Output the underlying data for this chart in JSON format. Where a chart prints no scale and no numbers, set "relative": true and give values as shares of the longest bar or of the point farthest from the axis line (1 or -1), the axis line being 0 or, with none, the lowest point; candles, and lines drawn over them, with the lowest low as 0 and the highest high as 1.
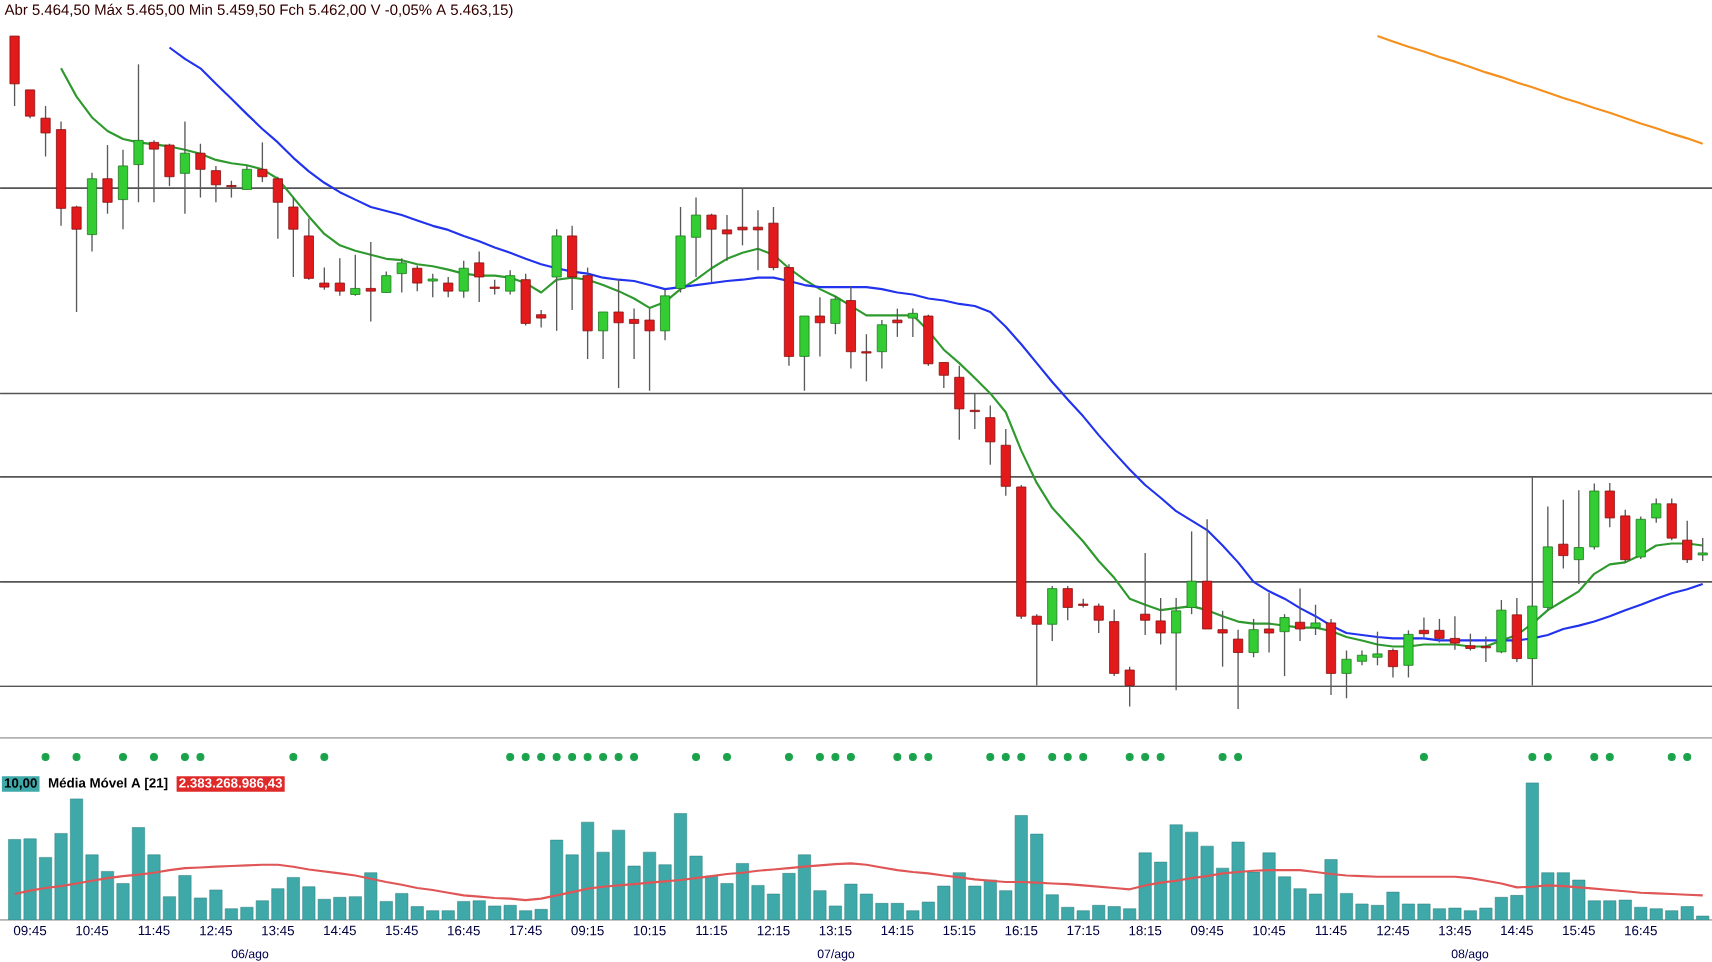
{
  "chart_data": [
    {
      "type": "candlestick",
      "relative": true,
      "tick_labels": false,
      "annotations": [
        "Abr 5.464,50 Máx 5.465,00 Min 5.459,50 Fch 5.462,00 V -0,05% A 5.463,15)"
      ],
      "categories": [
        null,
        null,
        null,
        null,
        null,
        null,
        null,
        null,
        null,
        null,
        null,
        null,
        null,
        null,
        null,
        null,
        null,
        null,
        null,
        null,
        null,
        null,
        null,
        null,
        null,
        null,
        null,
        null,
        null,
        null,
        null,
        null,
        null,
        null,
        null,
        null,
        null,
        null,
        null,
        null,
        null,
        null,
        null,
        null,
        null,
        null,
        null,
        null,
        null,
        null,
        null,
        null,
        null,
        null,
        null,
        null,
        null,
        null,
        null,
        null,
        null,
        null,
        null,
        null,
        null,
        null,
        null,
        null,
        null,
        null,
        null,
        null,
        null,
        null,
        null,
        null,
        null,
        null,
        null,
        null,
        null,
        null,
        null,
        null,
        null,
        null,
        null,
        null,
        null,
        null,
        null,
        null,
        null,
        null,
        null,
        null,
        null,
        null,
        null,
        null,
        null,
        null,
        null,
        null,
        null,
        null,
        null,
        null,
        null,
        null
      ],
      "ohlc": [
        [
          1.0,
          1.0,
          0.896,
          0.929
        ],
        [
          0.92,
          0.92,
          0.878,
          0.881
        ],
        [
          0.878,
          0.896,
          0.821,
          0.856
        ],
        [
          0.861,
          0.873,
          0.718,
          0.744
        ],
        [
          0.746,
          0.748,
          0.59,
          0.713
        ],
        [
          0.705,
          0.797,
          0.68,
          0.788
        ],
        [
          0.788,
          0.838,
          0.736,
          0.753
        ],
        [
          0.757,
          0.831,
          0.713,
          0.807
        ],
        [
          0.809,
          0.958,
          0.753,
          0.845
        ],
        [
          0.842,
          0.845,
          0.753,
          0.832
        ],
        [
          0.838,
          0.84,
          0.777,
          0.791
        ],
        [
          0.796,
          0.873,
          0.736,
          0.826
        ],
        [
          0.826,
          0.84,
          0.76,
          0.802
        ],
        [
          0.8,
          0.807,
          0.753,
          0.779
        ],
        [
          0.778,
          0.785,
          0.76,
          0.776
        ],
        [
          0.772,
          0.807,
          0.772,
          0.802
        ],
        [
          0.802,
          0.842,
          0.783,
          0.791
        ],
        [
          0.788,
          0.791,
          0.699,
          0.753
        ],
        [
          0.746,
          0.76,
          0.642,
          0.713
        ],
        [
          0.703,
          0.729,
          0.638,
          0.64
        ],
        [
          0.633,
          0.656,
          0.623,
          0.627
        ],
        [
          0.633,
          0.67,
          0.614,
          0.621
        ],
        [
          0.616,
          0.675,
          0.614,
          0.625
        ],
        [
          0.625,
          0.694,
          0.576,
          0.621
        ],
        [
          0.619,
          0.65,
          0.619,
          0.644
        ],
        [
          0.647,
          0.67,
          0.619,
          0.663
        ],
        [
          0.655,
          0.659,
          0.621,
          0.633
        ],
        [
          0.636,
          0.647,
          0.612,
          0.639
        ],
        [
          0.633,
          0.642,
          0.612,
          0.621
        ],
        [
          0.621,
          0.666,
          0.611,
          0.655
        ],
        [
          0.663,
          0.68,
          0.605,
          0.642
        ],
        [
          0.627,
          0.638,
          0.616,
          0.625
        ],
        [
          0.621,
          0.652,
          0.616,
          0.644
        ],
        [
          0.638,
          0.647,
          0.57,
          0.573
        ],
        [
          0.586,
          0.593,
          0.567,
          0.581
        ],
        [
          0.642,
          0.713,
          0.562,
          0.703
        ],
        [
          0.703,
          0.718,
          0.593,
          0.642
        ],
        [
          0.644,
          0.656,
          0.52,
          0.562
        ],
        [
          0.562,
          0.59,
          0.52,
          0.59
        ],
        [
          0.59,
          0.638,
          0.477,
          0.574
        ],
        [
          0.579,
          0.595,
          0.52,
          0.573
        ],
        [
          0.578,
          0.595,
          0.473,
          0.562
        ],
        [
          0.562,
          0.623,
          0.548,
          0.614
        ],
        [
          0.625,
          0.746,
          0.619,
          0.703
        ],
        [
          0.701,
          0.76,
          0.642,
          0.734
        ],
        [
          0.734,
          0.736,
          0.633,
          0.713
        ],
        [
          0.712,
          0.734,
          0.666,
          0.706
        ],
        [
          0.716,
          0.774,
          0.689,
          0.712
        ],
        [
          0.716,
          0.741,
          0.652,
          0.712
        ],
        [
          0.722,
          0.746,
          0.652,
          0.656
        ],
        [
          0.656,
          0.661,
          0.51,
          0.524
        ],
        [
          0.524,
          0.584,
          0.473,
          0.584
        ],
        [
          0.584,
          0.612,
          0.524,
          0.574
        ],
        [
          0.573,
          0.614,
          0.557,
          0.609
        ],
        [
          0.607,
          0.628,
          0.506,
          0.531
        ],
        [
          0.531,
          0.557,
          0.487,
          0.529
        ],
        [
          0.531,
          0.578,
          0.506,
          0.571
        ],
        [
          0.578,
          0.595,
          0.553,
          0.574
        ],
        [
          0.581,
          0.595,
          0.553,
          0.588
        ],
        [
          0.584,
          0.586,
          0.51,
          0.513
        ],
        [
          0.515,
          0.515,
          0.477,
          0.496
        ],
        [
          0.493,
          0.51,
          0.4,
          0.446
        ],
        [
          0.444,
          0.468,
          0.416,
          0.442
        ],
        [
          0.433,
          0.451,
          0.363,
          0.397
        ],
        [
          0.392,
          0.416,
          0.317,
          0.331
        ],
        [
          0.33,
          0.333,
          0.134,
          0.138
        ],
        [
          0.138,
          0.141,
          0.035,
          0.126
        ],
        [
          0.126,
          0.183,
          0.101,
          0.179
        ],
        [
          0.179,
          0.183,
          0.132,
          0.151
        ],
        [
          0.156,
          0.164,
          0.151,
          0.154
        ],
        [
          0.153,
          0.157,
          0.113,
          0.132
        ],
        [
          0.13,
          0.148,
          0.049,
          0.053
        ],
        [
          0.058,
          0.063,
          0.004,
          0.035
        ],
        [
          0.141,
          0.232,
          0.11,
          0.132
        ],
        [
          0.131,
          0.165,
          0.096,
          0.113
        ],
        [
          0.113,
          0.165,
          0.028,
          0.146
        ],
        [
          0.151,
          0.264,
          0.141,
          0.19
        ],
        [
          0.19,
          0.282,
          0.119,
          0.119
        ],
        [
          0.118,
          0.146,
          0.063,
          0.113
        ],
        [
          0.104,
          0.118,
          0.0,
          0.084
        ],
        [
          0.084,
          0.134,
          0.077,
          0.118
        ],
        [
          0.119,
          0.173,
          0.084,
          0.113
        ],
        [
          0.115,
          0.141,
          0.049,
          0.136
        ],
        [
          0.129,
          0.179,
          0.101,
          0.119
        ],
        [
          0.121,
          0.155,
          0.11,
          0.128
        ],
        [
          0.128,
          0.134,
          0.021,
          0.053
        ],
        [
          0.053,
          0.087,
          0.016,
          0.074
        ],
        [
          0.071,
          0.087,
          0.065,
          0.08
        ],
        [
          0.077,
          0.115,
          0.065,
          0.082
        ],
        [
          0.087,
          0.09,
          0.047,
          0.063
        ],
        [
          0.065,
          0.117,
          0.047,
          0.111
        ],
        [
          0.117,
          0.136,
          0.107,
          0.112
        ],
        [
          0.117,
          0.134,
          0.099,
          0.105
        ],
        [
          0.105,
          0.138,
          0.088,
          0.098
        ],
        [
          0.094,
          0.112,
          0.087,
          0.09
        ],
        [
          0.093,
          0.108,
          0.07,
          0.091
        ],
        [
          0.085,
          0.162,
          0.083,
          0.147
        ],
        [
          0.14,
          0.165,
          0.07,
          0.075
        ],
        [
          0.075,
          0.345,
          0.035,
          0.153
        ],
        [
          0.151,
          0.301,
          0.147,
          0.241
        ],
        [
          0.245,
          0.311,
          0.209,
          0.228
        ],
        [
          0.222,
          0.325,
          0.186,
          0.24
        ],
        [
          0.241,
          0.335,
          0.237,
          0.324
        ],
        [
          0.324,
          0.336,
          0.27,
          0.284
        ],
        [
          0.287,
          0.296,
          0.218,
          0.222
        ],
        [
          0.226,
          0.286,
          0.223,
          0.282
        ],
        [
          0.284,
          0.313,
          0.277,
          0.305
        ],
        [
          0.305,
          0.313,
          0.251,
          0.254
        ],
        [
          0.251,
          0.28,
          0.217,
          0.222
        ],
        [
          0.229,
          0.254,
          0.22,
          0.232
        ]
      ],
      "series": [
        {
          "type": "line",
          "color": "#2e9a2e",
          "values": [
            null,
            null,
            null,
            0.952,
            0.91,
            0.879,
            0.859,
            0.847,
            0.842,
            0.839,
            0.836,
            0.831,
            0.825,
            0.816,
            0.811,
            0.808,
            0.802,
            0.788,
            0.76,
            0.732,
            0.706,
            0.689,
            0.681,
            0.675,
            0.669,
            0.667,
            0.661,
            0.658,
            0.653,
            0.647,
            0.644,
            0.644,
            0.641,
            0.633,
            0.619,
            0.638,
            0.641,
            0.638,
            0.63,
            0.621,
            0.61,
            0.596,
            0.605,
            0.624,
            0.638,
            0.655,
            0.669,
            0.678,
            0.684,
            0.675,
            0.655,
            0.638,
            0.624,
            0.613,
            0.599,
            0.585,
            0.585,
            0.585,
            0.585,
            0.562,
            0.534,
            0.514,
            0.492,
            0.469,
            0.441,
            0.384,
            0.336,
            0.299,
            0.274,
            0.249,
            0.22,
            0.195,
            0.164,
            0.155,
            0.147,
            0.15,
            0.153,
            0.147,
            0.138,
            0.13,
            0.127,
            0.127,
            0.124,
            0.121,
            0.121,
            0.116,
            0.107,
            0.102,
            0.096,
            0.093,
            0.093,
            0.096,
            0.096,
            0.096,
            0.093,
            0.093,
            0.102,
            0.11,
            0.127,
            0.147,
            0.161,
            0.175,
            0.201,
            0.215,
            0.218,
            0.229,
            0.243,
            0.246,
            0.246,
            0.243
          ]
        },
        {
          "type": "line",
          "color": "#2233ee",
          "values": [
            null,
            null,
            null,
            null,
            null,
            null,
            null,
            null,
            null,
            null,
            0.983,
            0.966,
            0.952,
            0.929,
            0.907,
            0.884,
            0.862,
            0.842,
            0.819,
            0.799,
            0.782,
            0.768,
            0.757,
            0.746,
            0.74,
            0.734,
            0.726,
            0.718,
            0.712,
            0.703,
            0.695,
            0.686,
            0.678,
            0.669,
            0.661,
            0.655,
            0.65,
            0.647,
            0.641,
            0.638,
            0.636,
            0.63,
            0.624,
            0.627,
            0.63,
            0.633,
            0.636,
            0.638,
            0.641,
            0.641,
            0.636,
            0.63,
            0.627,
            0.627,
            0.627,
            0.627,
            0.624,
            0.619,
            0.616,
            0.61,
            0.607,
            0.602,
            0.599,
            0.59,
            0.568,
            0.542,
            0.514,
            0.486,
            0.46,
            0.435,
            0.407,
            0.381,
            0.356,
            0.333,
            0.314,
            0.294,
            0.28,
            0.266,
            0.243,
            0.218,
            0.189,
            0.175,
            0.164,
            0.15,
            0.138,
            0.124,
            0.113,
            0.11,
            0.107,
            0.105,
            0.105,
            0.105,
            0.102,
            0.102,
            0.102,
            0.102,
            0.102,
            0.102,
            0.105,
            0.11,
            0.119,
            0.124,
            0.13,
            0.138,
            0.147,
            0.155,
            0.164,
            0.172,
            0.178,
            0.186
          ]
        },
        {
          "type": "line",
          "color": "#f5901e",
          "values": [
            null,
            null,
            null,
            null,
            null,
            null,
            null,
            null,
            null,
            null,
            null,
            null,
            null,
            null,
            null,
            null,
            null,
            null,
            null,
            null,
            null,
            null,
            null,
            null,
            null,
            null,
            null,
            null,
            null,
            null,
            null,
            null,
            null,
            null,
            null,
            null,
            null,
            null,
            null,
            null,
            null,
            null,
            null,
            null,
            null,
            null,
            null,
            null,
            null,
            null,
            null,
            null,
            null,
            null,
            null,
            null,
            null,
            null,
            null,
            null,
            null,
            null,
            null,
            null,
            null,
            null,
            null,
            null,
            null,
            null,
            null,
            null,
            null,
            null,
            null,
            null,
            null,
            null,
            null,
            null,
            null,
            null,
            null,
            null,
            null,
            null,
            null,
            null,
            1.0,
            0.992,
            0.984,
            0.977,
            0.969,
            0.962,
            0.954,
            0.946,
            0.939,
            0.931,
            0.924,
            0.916,
            0.908,
            0.901,
            0.893,
            0.886,
            0.878,
            0.87,
            0.863,
            0.855,
            0.848,
            0.84
          ]
        }
      ],
      "ref_lines": [
        {
          "axis": "y",
          "value": 0.774,
          "color": "#555555"
        },
        {
          "axis": "y",
          "value": 0.469,
          "color": "#555555"
        },
        {
          "axis": "y",
          "value": 0.345,
          "color": "#555555"
        },
        {
          "axis": "y",
          "value": 0.189,
          "color": "#555555"
        },
        {
          "axis": "y",
          "value": 0.034,
          "color": "#555555"
        }
      ]
    },
    {
      "type": "bar",
      "relative": true,
      "tick_labels": "x",
      "annotations": [
        "10,00",
        "Média Móvel A [21]",
        "2.383.268.986,43",
        "06/ago",
        "07/ago",
        "08/ago"
      ],
      "categories": [
        null,
        "09:45",
        null,
        null,
        null,
        "10:45",
        null,
        null,
        null,
        "11:45",
        null,
        null,
        null,
        "12:45",
        null,
        null,
        null,
        "13:45",
        null,
        null,
        null,
        "14:45",
        null,
        null,
        null,
        "15:45",
        null,
        null,
        null,
        "16:45",
        null,
        null,
        null,
        "17:45",
        null,
        null,
        null,
        "09:15",
        null,
        null,
        null,
        "10:15",
        null,
        null,
        null,
        "11:15",
        null,
        null,
        null,
        "12:15",
        null,
        null,
        null,
        "13:15",
        null,
        null,
        null,
        "14:15",
        null,
        null,
        null,
        "15:15",
        null,
        null,
        null,
        "16:15",
        null,
        null,
        null,
        "17:15",
        null,
        null,
        null,
        "18:15",
        null,
        null,
        null,
        "09:45",
        null,
        null,
        null,
        "10:45",
        null,
        null,
        null,
        "11:45",
        null,
        null,
        null,
        "12:45",
        null,
        null,
        null,
        "13:45",
        null,
        null,
        null,
        "14:45",
        null,
        null,
        null,
        "15:45",
        null,
        null,
        null,
        "16:45",
        null,
        null,
        null,
        null
      ],
      "series": [
        {
          "type": "bar",
          "color": "#3fa9a9",
          "values": [
            0.494,
            0.498,
            0.384,
            0.531,
            0.743,
            0.4,
            0.298,
            0.224,
            0.567,
            0.4,
            0.143,
            0.273,
            0.135,
            0.184,
            0.069,
            0.078,
            0.118,
            0.192,
            0.261,
            0.204,
            0.127,
            0.139,
            0.143,
            0.29,
            0.114,
            0.163,
            0.082,
            0.057,
            0.057,
            0.114,
            0.118,
            0.086,
            0.09,
            0.057,
            0.065,
            0.49,
            0.4,
            0.6,
            0.416,
            0.551,
            0.331,
            0.416,
            0.339,
            0.653,
            0.392,
            0.269,
            0.224,
            0.347,
            0.212,
            0.159,
            0.286,
            0.4,
            0.18,
            0.086,
            0.22,
            0.159,
            0.102,
            0.102,
            0.057,
            0.11,
            0.208,
            0.29,
            0.208,
            0.245,
            0.18,
            0.641,
            0.527,
            0.155,
            0.078,
            0.057,
            0.09,
            0.082,
            0.069,
            0.412,
            0.355,
            0.584,
            0.539,
            0.453,
            0.318,
            0.478,
            0.294,
            0.412,
            0.265,
            0.192,
            0.159,
            0.371,
            0.163,
            0.098,
            0.09,
            0.171,
            0.098,
            0.098,
            0.069,
            0.073,
            0.057,
            0.073,
            0.139,
            0.151,
            0.841,
            0.29,
            0.29,
            0.245,
            0.118,
            0.118,
            0.122,
            0.078,
            0.069,
            0.057,
            0.082,
            0.024
          ]
        },
        {
          "type": "line",
          "color": "#e05555",
          "values": [
            0.159,
            0.18,
            0.196,
            0.208,
            0.224,
            0.241,
            0.257,
            0.269,
            0.278,
            0.29,
            0.306,
            0.318,
            0.322,
            0.327,
            0.331,
            0.335,
            0.339,
            0.339,
            0.327,
            0.31,
            0.298,
            0.286,
            0.273,
            0.253,
            0.233,
            0.216,
            0.196,
            0.184,
            0.167,
            0.151,
            0.143,
            0.135,
            0.131,
            0.122,
            0.131,
            0.151,
            0.171,
            0.192,
            0.204,
            0.212,
            0.22,
            0.229,
            0.237,
            0.245,
            0.257,
            0.269,
            0.282,
            0.29,
            0.302,
            0.31,
            0.318,
            0.327,
            0.335,
            0.343,
            0.347,
            0.339,
            0.322,
            0.306,
            0.294,
            0.286,
            0.273,
            0.261,
            0.249,
            0.241,
            0.233,
            0.233,
            0.229,
            0.224,
            0.22,
            0.212,
            0.204,
            0.196,
            0.188,
            0.212,
            0.229,
            0.241,
            0.257,
            0.269,
            0.286,
            0.294,
            0.302,
            0.306,
            0.306,
            0.306,
            0.294,
            0.282,
            0.273,
            0.269,
            0.265,
            0.265,
            0.265,
            0.265,
            0.265,
            0.265,
            0.257,
            0.241,
            0.224,
            0.2,
            0.204,
            0.212,
            0.208,
            0.2,
            0.192,
            0.184,
            0.176,
            0.167,
            0.163,
            0.159,
            0.155,
            0.151
          ]
        },
        {
          "type": "scatter",
          "color": "#1aa34a",
          "marker": "circle",
          "values": [
            null,
            null,
            1,
            null,
            1,
            null,
            null,
            1,
            null,
            1,
            null,
            1,
            1,
            null,
            null,
            null,
            null,
            null,
            1,
            null,
            1,
            null,
            null,
            null,
            null,
            null,
            null,
            null,
            null,
            null,
            null,
            null,
            1,
            1,
            1,
            1,
            1,
            1,
            1,
            1,
            1,
            null,
            null,
            null,
            1,
            null,
            1,
            null,
            null,
            null,
            1,
            null,
            1,
            1,
            1,
            null,
            null,
            1,
            1,
            1,
            null,
            null,
            null,
            1,
            1,
            1,
            null,
            1,
            1,
            1,
            null,
            null,
            1,
            1,
            1,
            null,
            null,
            null,
            1,
            1,
            null,
            null,
            null,
            null,
            null,
            null,
            null,
            null,
            null,
            null,
            null,
            1,
            null,
            null,
            null,
            null,
            null,
            null,
            1,
            1,
            null,
            null,
            1,
            1,
            null,
            null,
            null,
            1,
            1,
            null
          ]
        }
      ]
    }
  ]
}
